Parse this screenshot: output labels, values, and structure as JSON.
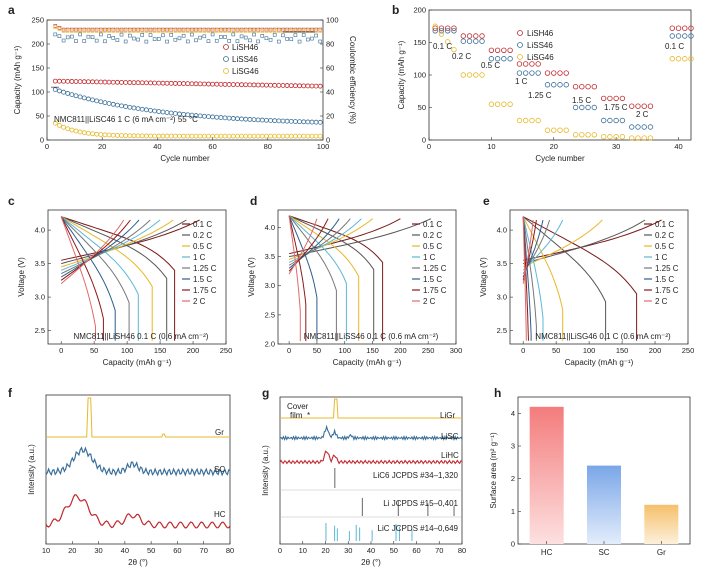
{
  "colors": {
    "red": "#c0282d",
    "blue": "#3a6f9a",
    "yellow": "#e8b828",
    "dark_red": "#8b1a1a",
    "gray_stick": "#666666",
    "cyan_stick": "#5bb8d6",
    "hc_bar_top": "#f47c7c",
    "hc_bar_bottom": "#fde0e0",
    "sc_bar_top": "#7aa6e8",
    "sc_bar_bottom": "#e3edfb",
    "gr_bar_top": "#f5c06a",
    "gr_bar_bottom": "#fdf0dc"
  },
  "panels": {
    "a": {
      "label": "a"
    },
    "b": {
      "label": "b"
    },
    "c": {
      "label": "c"
    },
    "d": {
      "label": "d"
    },
    "e": {
      "label": "e"
    },
    "f": {
      "label": "f"
    },
    "g": {
      "label": "g"
    },
    "h": {
      "label": "h"
    }
  },
  "rate_legend": [
    "0.1 C",
    "0.2 C",
    "0.5 C",
    "1 C",
    "1.25 C",
    "1.5 C",
    "1.75 C",
    "2 C"
  ],
  "rate_colors": [
    "#7a1a1a",
    "#555555",
    "#e8b828",
    "#5bb8d6",
    "#777777",
    "#2d5e8c",
    "#8b1a1a",
    "#e06a6a"
  ],
  "chart_data": [
    {
      "panel": "a",
      "type": "scatter",
      "xlabel": "Cycle number",
      "ylabel": "Capacity (mAh g⁻¹)",
      "y2label": "Coulombic efficiency (%)",
      "xlim": [
        0,
        100
      ],
      "ylim": [
        0,
        250
      ],
      "y2lim": [
        0,
        100
      ],
      "xticks": [
        "0",
        "20",
        "40",
        "60",
        "80",
        "100"
      ],
      "yticks": [
        "0",
        "50",
        "100",
        "150",
        "200",
        "250"
      ],
      "y2ticks": [
        "0",
        "20",
        "40",
        "60",
        "80",
        "100"
      ],
      "annotation": "NMC811||LiSC46 1 C (6 mA cm⁻²) 55 °C",
      "series": [
        {
          "name": "LiSH46",
          "capacity_start": 123,
          "capacity_end": 112
        },
        {
          "name": "LiSS46",
          "capacity_start": 105,
          "capacity_end": 30
        },
        {
          "name": "LiSG46",
          "capacity_start": 35,
          "capacity_end": 8
        }
      ],
      "ce": [
        {
          "series": "LiSH46",
          "value": 92
        },
        {
          "series": "LiSS46",
          "value": 85
        },
        {
          "series": "LiSG46",
          "value": 91
        }
      ]
    },
    {
      "panel": "b",
      "type": "scatter",
      "xlabel": "Cycle number",
      "ylabel": "Capacity (mAh g⁻¹)",
      "xlim": [
        0,
        42
      ],
      "ylim": [
        0,
        200
      ],
      "xticks": [
        "0",
        "10",
        "20",
        "30",
        "40"
      ],
      "yticks": [
        "0",
        "50",
        "100",
        "150",
        "200"
      ],
      "rates": [
        "0.1 C",
        "0.2 C",
        "0.5 C",
        "1 C",
        "1.25 C",
        "1.5 C",
        "1.75 C",
        "2 C",
        "0.1 C"
      ],
      "series": [
        {
          "name": "LiSH46",
          "values": [
            172,
            160,
            138,
            117,
            103,
            82,
            64,
            52,
            172
          ]
        },
        {
          "name": "LiSS46",
          "values": [
            168,
            152,
            125,
            103,
            85,
            50,
            30,
            20,
            160
          ]
        },
        {
          "name": "LiSG46",
          "values": [
            175,
            100,
            55,
            30,
            15,
            8,
            5,
            3,
            125
          ]
        }
      ]
    },
    {
      "panel": "c",
      "type": "line",
      "xlabel": "Capacity (mAh g⁻¹)",
      "ylabel": "Voltage (V)",
      "xlim": [
        -20,
        250
      ],
      "ylim": [
        2.3,
        4.3
      ],
      "xticks": [
        "0",
        "50",
        "100",
        "150",
        "200",
        "250"
      ],
      "yticks": [
        "2.5",
        "3.0",
        "3.5",
        "4.0"
      ],
      "annotation": "NMC811||LiSH46 0.1 C (0.6 mA cm⁻²)",
      "discharge_capacity": [
        172,
        160,
        138,
        117,
        103,
        82,
        64,
        52
      ],
      "charge_capacity": [
        210,
        190,
        170,
        150,
        135,
        118,
        105,
        95
      ]
    },
    {
      "panel": "d",
      "type": "line",
      "xlabel": "Capacity (mAh g⁻¹)",
      "ylabel": "Voltage (V)",
      "xlim": [
        -20,
        300
      ],
      "ylim": [
        2.0,
        4.3
      ],
      "xticks": [
        "0",
        "50",
        "100",
        "150",
        "200",
        "250",
        "300"
      ],
      "yticks": [
        "2.0",
        "2.5",
        "3.0",
        "3.5",
        "4.0"
      ],
      "annotation": "NMC811||LiSS46 0.1 C (0.6 mA cm⁻²)",
      "discharge_capacity": [
        168,
        152,
        125,
        103,
        85,
        50,
        30,
        20
      ],
      "charge_capacity": [
        200,
        255,
        150,
        130,
        110,
        90,
        70,
        50
      ]
    },
    {
      "panel": "e",
      "type": "line",
      "xlabel": "Capacity (mAh g⁻¹)",
      "ylabel": "Voltage (V)",
      "xlim": [
        -20,
        250
      ],
      "ylim": [
        2.3,
        4.3
      ],
      "xticks": [
        "0",
        "50",
        "100",
        "150",
        "200",
        "250"
      ],
      "yticks": [
        "2.5",
        "3.0",
        "3.5",
        "4.0"
      ],
      "annotation": "NMC811||LiSG46 0.1 C (0.6 mA cm⁻²)",
      "discharge_capacity": [
        172,
        125,
        60,
        30,
        20,
        12,
        8,
        5
      ],
      "charge_capacity": [
        210,
        185,
        120,
        60,
        40,
        30,
        20,
        15
      ]
    },
    {
      "panel": "f",
      "type": "line",
      "xlabel": "2θ (°)",
      "ylabel": "Intensity (a.u.)",
      "xlim": [
        10,
        80
      ],
      "xticks": [
        "10",
        "20",
        "30",
        "40",
        "50",
        "60",
        "70",
        "80"
      ],
      "series": [
        {
          "name": "Gr"
        },
        {
          "name": "SC"
        },
        {
          "name": "HC"
        }
      ]
    },
    {
      "panel": "g",
      "type": "line",
      "xlabel": "2θ (°)",
      "ylabel": "Intensity (a.u.)",
      "xlim": [
        0,
        80
      ],
      "xticks": [
        "0",
        "10",
        "20",
        "30",
        "40",
        "50",
        "60",
        "70",
        "80"
      ],
      "cover_film": "Cover\nfilm",
      "star": "*",
      "series": [
        {
          "name": "LiGr"
        },
        {
          "name": "LiSC"
        },
        {
          "name": "LiHC"
        }
      ],
      "references": [
        {
          "name": "LiC6 JCPDS #34–1,320",
          "peaks": [
            24.1
          ]
        },
        {
          "name": "Li JCPDS #15–0,401",
          "peaks": [
            36.2,
            52.0,
            65.0,
            76.5
          ]
        },
        {
          "name": "LiC JCPDS #14–0,649",
          "peaks": [
            20.2,
            24.0,
            25.2,
            30.5,
            33.5,
            35.0,
            40.5,
            51.0,
            52.5,
            58.0
          ]
        }
      ]
    },
    {
      "panel": "h",
      "type": "bar",
      "xlabel": "",
      "ylabel": "Surface area (m² g⁻¹)",
      "categories": [
        "HC",
        "SC",
        "Gr"
      ],
      "values": [
        4.2,
        2.4,
        1.2
      ],
      "ylim": [
        0,
        4.5
      ],
      "yticks": [
        "0",
        "1",
        "2",
        "3",
        "4"
      ]
    }
  ]
}
